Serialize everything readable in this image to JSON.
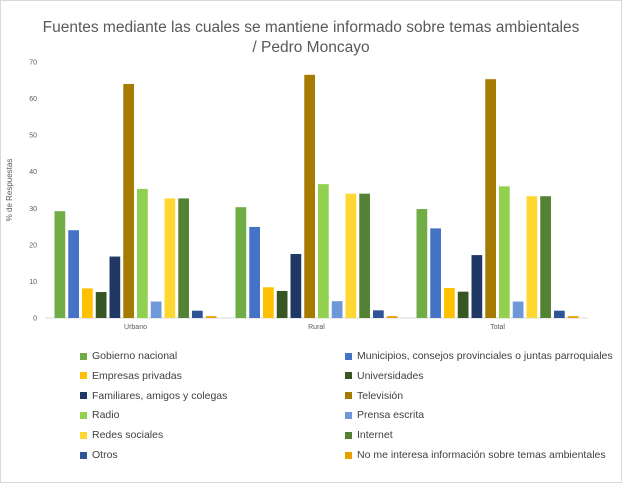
{
  "chart_data": {
    "type": "bar",
    "title": "Fuentes mediante las cuales se mantiene informado sobre temas ambientales / Pedro Moncayo",
    "xlabel": "",
    "ylabel": "% de Respuestas",
    "ylim": [
      0,
      70
    ],
    "yticks": [
      "0",
      "10",
      "20",
      "30",
      "40",
      "50",
      "60",
      "70"
    ],
    "grid": false,
    "legend_position": "bottom",
    "categories": [
      "Urbano",
      "Rural",
      "Total"
    ],
    "series": [
      {
        "name": "Gobierno nacional",
        "color": "#70ad47",
        "values": [
          29.2,
          30.3,
          29.8
        ]
      },
      {
        "name": "Municipios, consejos provinciales o juntas parroquiales",
        "color": "#4472c4",
        "values": [
          24.0,
          24.9,
          24.5
        ]
      },
      {
        "name": "Empresas privadas",
        "color": "#ffc000",
        "values": [
          8.1,
          8.4,
          8.2
        ]
      },
      {
        "name": "Universidades",
        "color": "#375623",
        "values": [
          7.1,
          7.4,
          7.2
        ]
      },
      {
        "name": "Familiares, amigos y colegas",
        "color": "#203864",
        "values": [
          16.8,
          17.5,
          17.2
        ]
      },
      {
        "name": "Televisión",
        "color": "#a67c00",
        "values": [
          64.0,
          66.5,
          65.3
        ]
      },
      {
        "name": "Radio",
        "color": "#92d050",
        "values": [
          35.3,
          36.6,
          36.0
        ]
      },
      {
        "name": "Prensa escrita",
        "color": "#6f98d8",
        "values": [
          4.5,
          4.6,
          4.5
        ]
      },
      {
        "name": "Redes sociales",
        "color": "#ffd732",
        "values": [
          32.7,
          34.0,
          33.3
        ]
      },
      {
        "name": "Internet",
        "color": "#548235",
        "values": [
          32.7,
          34.0,
          33.3
        ]
      },
      {
        "name": "Otros",
        "color": "#2f5597",
        "values": [
          2.0,
          2.1,
          2.0
        ]
      },
      {
        "name": "No me interesa información sobre temas ambientales",
        "color": "#e6a000",
        "values": [
          0.5,
          0.5,
          0.5
        ]
      }
    ]
  }
}
